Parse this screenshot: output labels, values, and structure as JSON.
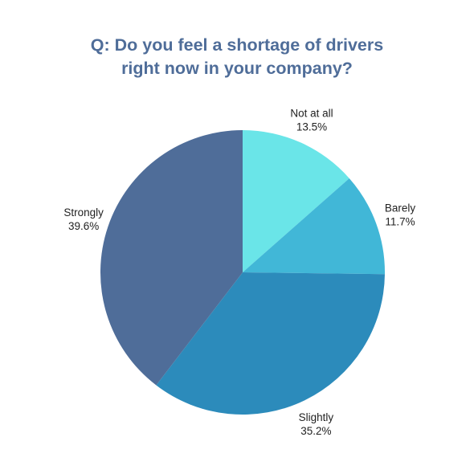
{
  "chart_data": {
    "type": "pie",
    "title": {
      "line1": "Q: Do you feel a shortage of drivers",
      "line2": "right now in your company?"
    },
    "slices": [
      {
        "label": "Not at all",
        "value": 13.5,
        "value_label": "13.5%",
        "color": "#6ae5e8"
      },
      {
        "label": "Barely",
        "value": 11.7,
        "value_label": "11.7%",
        "color": "#41b7d7"
      },
      {
        "label": "Slightly",
        "value": 35.2,
        "value_label": "35.2%",
        "color": "#2c8bbb"
      },
      {
        "label": "Strongly",
        "value": 39.6,
        "value_label": "39.6%",
        "color": "#4f6d99"
      }
    ],
    "start_angle": "12 o'clock",
    "direction": "clockwise",
    "legend": "none"
  },
  "colors": {
    "title": "#4f6d99",
    "label_text": "#222222",
    "background": "#ffffff"
  }
}
